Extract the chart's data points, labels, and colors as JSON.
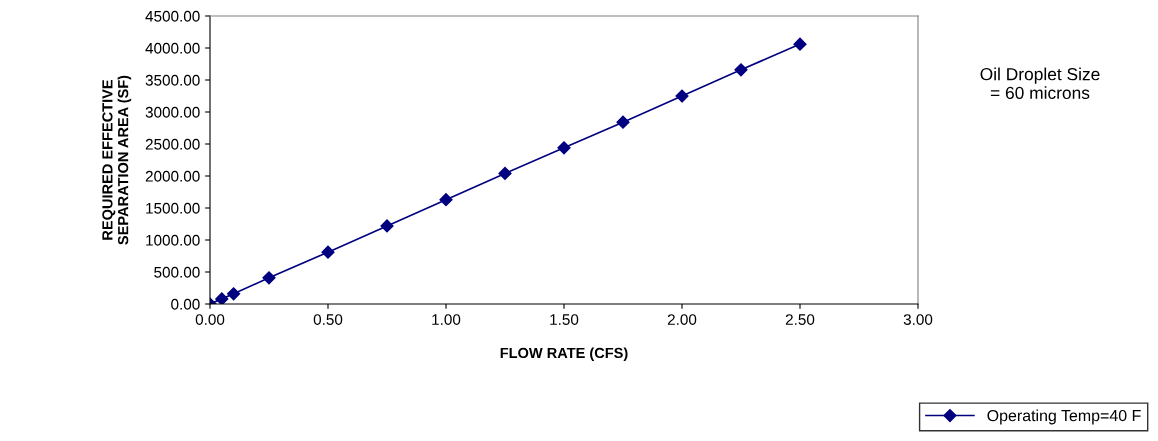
{
  "chart_data": {
    "type": "line",
    "xlabel": "FLOW RATE (CFS)",
    "ylabel": "REQUIRED EFFECTIVE\nSEPARATION AREA (SF)",
    "annotations": [
      "Oil Droplet Size\n= 60 microns"
    ],
    "x": [
      0,
      0.05,
      0.1,
      0.25,
      0.5,
      0.75,
      1.0,
      1.25,
      1.5,
      1.75,
      2.0,
      2.25,
      2.5
    ],
    "series": [
      {
        "name": "Operating Temp=40 F",
        "color": "#000080",
        "values": [
          0,
          80,
          160,
          410,
          810,
          1220,
          1630,
          2040,
          2440,
          2840,
          3250,
          3660,
          4060
        ]
      }
    ],
    "xlim": [
      0,
      3
    ],
    "xticks": [
      {
        "value": 0,
        "label": "0.00"
      },
      {
        "value": 0.5,
        "label": "0.50"
      },
      {
        "value": 1,
        "label": "1.00"
      },
      {
        "value": 1.5,
        "label": "1.50"
      },
      {
        "value": 2,
        "label": "2.00"
      },
      {
        "value": 2.5,
        "label": "2.50"
      },
      {
        "value": 3,
        "label": "3.00"
      }
    ],
    "ylim": [
      0,
      4500
    ],
    "yticks": [
      {
        "value": 0,
        "label": "0.00"
      },
      {
        "value": 500,
        "label": "500.00"
      },
      {
        "value": 1000,
        "label": "1000.00"
      },
      {
        "value": 1500,
        "label": "1500.00"
      },
      {
        "value": 2000,
        "label": "2000.00"
      },
      {
        "value": 2500,
        "label": "2500.00"
      },
      {
        "value": 3000,
        "label": "3000.00"
      },
      {
        "value": 3500,
        "label": "3500.00"
      },
      {
        "value": 4000,
        "label": "4000.00"
      },
      {
        "value": 4500,
        "label": "4500.00"
      }
    ],
    "marker": "diamond",
    "line_style": "solid",
    "legend": "bottom right",
    "grid": false
  }
}
